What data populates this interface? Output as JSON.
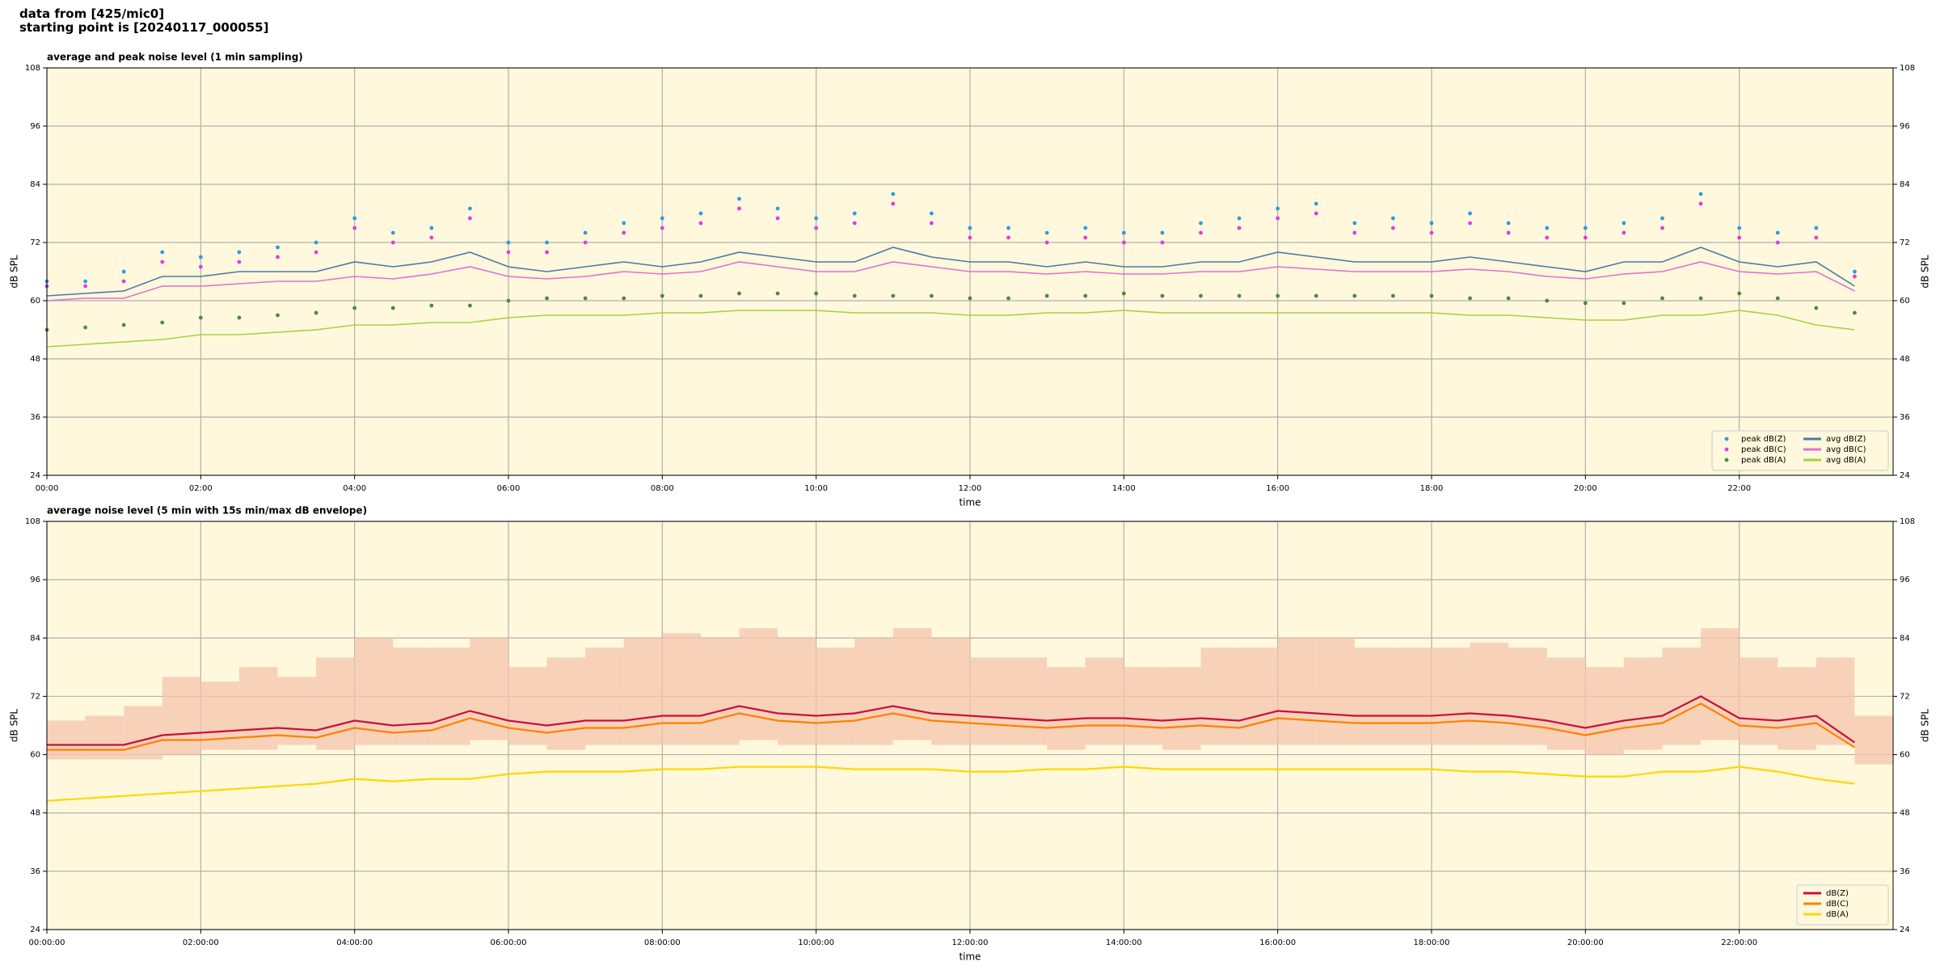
{
  "page_title": [
    "data from [425/mic0]",
    "starting point is [20240117_000055]"
  ],
  "chart_data": [
    {
      "type": "line",
      "title": "average and peak noise level (1 min sampling)",
      "xlabel": "time",
      "ylabel": "dB SPL",
      "xlim": [
        0,
        24
      ],
      "ylim": [
        24,
        108
      ],
      "xticks": [
        {
          "value": 0,
          "label": "00:00"
        },
        {
          "value": 2,
          "label": "02:00"
        },
        {
          "value": 4,
          "label": "04:00"
        },
        {
          "value": 6,
          "label": "06:00"
        },
        {
          "value": 8,
          "label": "08:00"
        },
        {
          "value": 10,
          "label": "10:00"
        },
        {
          "value": 12,
          "label": "12:00"
        },
        {
          "value": 14,
          "label": "14:00"
        },
        {
          "value": 16,
          "label": "16:00"
        },
        {
          "value": 18,
          "label": "18:00"
        },
        {
          "value": 20,
          "label": "20:00"
        },
        {
          "value": 22,
          "label": "22:00"
        }
      ],
      "yticks": [
        24,
        36,
        48,
        60,
        72,
        84,
        96,
        108
      ],
      "grid": true,
      "legend": "lower right",
      "legend_columns": 2,
      "x": [
        0,
        0.5,
        1,
        1.5,
        2,
        2.5,
        3,
        3.5,
        4,
        4.5,
        5,
        5.5,
        6,
        6.5,
        7,
        7.5,
        8,
        8.5,
        9,
        9.5,
        10,
        10.5,
        11,
        11.5,
        12,
        12.5,
        13,
        13.5,
        14,
        14.5,
        15,
        15.5,
        16,
        16.5,
        17,
        17.5,
        18,
        18.5,
        19,
        19.5,
        20,
        20.5,
        21,
        21.5,
        22,
        22.5,
        23,
        23.5
      ],
      "series": [
        {
          "name": "peak dB(Z)",
          "color": "#2a9de0",
          "marker": "dot",
          "values": [
            64,
            64,
            66,
            70,
            69,
            70,
            71,
            72,
            77,
            74,
            75,
            79,
            72,
            72,
            74,
            76,
            77,
            78,
            81,
            79,
            77,
            78,
            82,
            78,
            75,
            75,
            74,
            75,
            74,
            74,
            76,
            77,
            79,
            80,
            76,
            77,
            76,
            78,
            76,
            75,
            75,
            76,
            77,
            82,
            75,
            74,
            75,
            66
          ]
        },
        {
          "name": "peak dB(C)",
          "color": "#e03ce0",
          "marker": "dot",
          "values": [
            63,
            63,
            64,
            68,
            67,
            68,
            69,
            70,
            75,
            72,
            73,
            77,
            70,
            70,
            72,
            74,
            75,
            76,
            79,
            77,
            75,
            76,
            80,
            76,
            73,
            73,
            72,
            73,
            72,
            72,
            74,
            75,
            77,
            78,
            74,
            75,
            74,
            76,
            74,
            73,
            73,
            74,
            75,
            80,
            73,
            72,
            73,
            65
          ]
        },
        {
          "name": "peak dB(A)",
          "color": "#4b8b3b",
          "marker": "dot",
          "values": [
            54,
            54.5,
            55,
            55.5,
            56.5,
            56.5,
            57,
            57.5,
            58.5,
            58.5,
            59,
            59,
            60,
            60.5,
            60.5,
            60.5,
            61,
            61,
            61.5,
            61.5,
            61.5,
            61,
            61,
            61,
            60.5,
            60.5,
            61,
            61,
            61.5,
            61,
            61,
            61,
            61,
            61,
            61,
            61,
            61,
            60.5,
            60.5,
            60,
            59.5,
            59.5,
            60.5,
            60.5,
            61.5,
            60.5,
            58.5,
            57.5
          ]
        },
        {
          "name": "avg dB(Z)",
          "color": "#4a7aa8",
          "values": [
            61,
            61.5,
            62,
            65,
            65,
            66,
            66,
            66,
            68,
            67,
            68,
            70,
            67,
            66,
            67,
            68,
            67,
            68,
            70,
            69,
            68,
            68,
            71,
            69,
            68,
            68,
            67,
            68,
            67,
            67,
            68,
            68,
            70,
            69,
            68,
            68,
            68,
            69,
            68,
            67,
            66,
            68,
            68,
            71,
            68,
            67,
            68,
            63
          ]
        },
        {
          "name": "avg dB(C)",
          "color": "#e070d0",
          "values": [
            60,
            60.5,
            60.5,
            63,
            63,
            63.5,
            64,
            64,
            65,
            64.5,
            65.5,
            67,
            65,
            64.5,
            65,
            66,
            65.5,
            66,
            68,
            67,
            66,
            66,
            68,
            67,
            66,
            66,
            65.5,
            66,
            65.5,
            65.5,
            66,
            66,
            67,
            66.5,
            66,
            66,
            66,
            66.5,
            66,
            65,
            64.5,
            65.5,
            66,
            68,
            66,
            65.5,
            66,
            62
          ]
        },
        {
          "name": "avg dB(A)",
          "color": "#a8d040",
          "values": [
            50.5,
            51,
            51.5,
            52,
            53,
            53,
            53.5,
            54,
            55,
            55,
            55.5,
            55.5,
            56.5,
            57,
            57,
            57,
            57.5,
            57.5,
            58,
            58,
            58,
            57.5,
            57.5,
            57.5,
            57,
            57,
            57.5,
            57.5,
            58,
            57.5,
            57.5,
            57.5,
            57.5,
            57.5,
            57.5,
            57.5,
            57.5,
            57,
            57,
            56.5,
            56,
            56,
            57,
            57,
            58,
            57,
            55,
            54
          ]
        }
      ]
    },
    {
      "type": "line",
      "title": "average noise level (5 min with 15s min/max dB envelope)",
      "xlabel": "time",
      "ylabel": "dB SPL",
      "xlim": [
        0,
        24
      ],
      "ylim": [
        24,
        108
      ],
      "xticks": [
        {
          "value": 0,
          "label": "00:00:00"
        },
        {
          "value": 2,
          "label": "02:00:00"
        },
        {
          "value": 4,
          "label": "04:00:00"
        },
        {
          "value": 6,
          "label": "06:00:00"
        },
        {
          "value": 8,
          "label": "08:00:00"
        },
        {
          "value": 10,
          "label": "10:00:00"
        },
        {
          "value": 12,
          "label": "12:00:00"
        },
        {
          "value": 14,
          "label": "14:00:00"
        },
        {
          "value": 16,
          "label": "16:00:00"
        },
        {
          "value": 18,
          "label": "18:00:00"
        },
        {
          "value": 20,
          "label": "20:00:00"
        },
        {
          "value": 22,
          "label": "22:00:00"
        }
      ],
      "yticks": [
        24,
        36,
        48,
        60,
        72,
        84,
        96,
        108
      ],
      "grid": true,
      "legend": "lower right",
      "legend_columns": 1,
      "x": [
        0,
        0.5,
        1,
        1.5,
        2,
        2.5,
        3,
        3.5,
        4,
        4.5,
        5,
        5.5,
        6,
        6.5,
        7,
        7.5,
        8,
        8.5,
        9,
        9.5,
        10,
        10.5,
        11,
        11.5,
        12,
        12.5,
        13,
        13.5,
        14,
        14.5,
        15,
        15.5,
        16,
        16.5,
        17,
        17.5,
        18,
        18.5,
        19,
        19.5,
        20,
        20.5,
        21,
        21.5,
        22,
        22.5,
        23,
        23.5
      ],
      "envelope": {
        "color": "#f5c4ae",
        "max": [
          67,
          68,
          70,
          76,
          75,
          78,
          76,
          80,
          84,
          82,
          82,
          84,
          78,
          80,
          82,
          84,
          85,
          84,
          86,
          84,
          82,
          84,
          86,
          84,
          80,
          80,
          78,
          80,
          78,
          78,
          82,
          82,
          84,
          84,
          82,
          82,
          82,
          83,
          82,
          80,
          78,
          80,
          82,
          86,
          80,
          78,
          80,
          68
        ],
        "min": [
          59,
          59,
          59,
          60,
          61,
          61,
          62,
          61,
          62,
          62,
          62,
          63,
          62,
          61,
          62,
          62,
          62,
          62,
          63,
          62,
          62,
          62,
          63,
          62,
          62,
          62,
          61,
          62,
          62,
          61,
          62,
          62,
          62,
          62,
          62,
          62,
          62,
          62,
          62,
          61,
          60,
          61,
          62,
          63,
          62,
          61,
          62,
          58
        ]
      },
      "series": [
        {
          "name": "dB(Z)",
          "color": "#c8103a",
          "values": [
            62,
            62,
            62,
            64,
            64.5,
            65,
            65.5,
            65,
            67,
            66,
            66.5,
            69,
            67,
            66,
            67,
            67,
            68,
            68,
            70,
            68.5,
            68,
            68.5,
            70,
            68.5,
            68,
            67.5,
            67,
            67.5,
            67.5,
            67,
            67.5,
            67,
            69,
            68.5,
            68,
            68,
            68,
            68.5,
            68,
            67,
            65.5,
            67,
            68,
            72,
            67.5,
            67,
            68,
            62.5
          ]
        },
        {
          "name": "dB(C)",
          "color": "#ff8000",
          "values": [
            61,
            61,
            61,
            63,
            63,
            63.5,
            64,
            63.5,
            65.5,
            64.5,
            65,
            67.5,
            65.5,
            64.5,
            65.5,
            65.5,
            66.5,
            66.5,
            68.5,
            67,
            66.5,
            67,
            68.5,
            67,
            66.5,
            66,
            65.5,
            66,
            66,
            65.5,
            66,
            65.5,
            67.5,
            67,
            66.5,
            66.5,
            66.5,
            67,
            66.5,
            65.5,
            64,
            65.5,
            66.5,
            70.5,
            66,
            65.5,
            66.5,
            61.5
          ]
        },
        {
          "name": "dB(A)",
          "color": "#ffd700",
          "values": [
            50.5,
            51,
            51.5,
            52,
            52.5,
            53,
            53.5,
            54,
            55,
            54.5,
            55,
            55,
            56,
            56.5,
            56.5,
            56.5,
            57,
            57,
            57.5,
            57.5,
            57.5,
            57,
            57,
            57,
            56.5,
            56.5,
            57,
            57,
            57.5,
            57,
            57,
            57,
            57,
            57,
            57,
            57,
            57,
            56.5,
            56.5,
            56,
            55.5,
            55.5,
            56.5,
            56.5,
            57.5,
            56.5,
            55,
            54
          ]
        }
      ]
    }
  ]
}
